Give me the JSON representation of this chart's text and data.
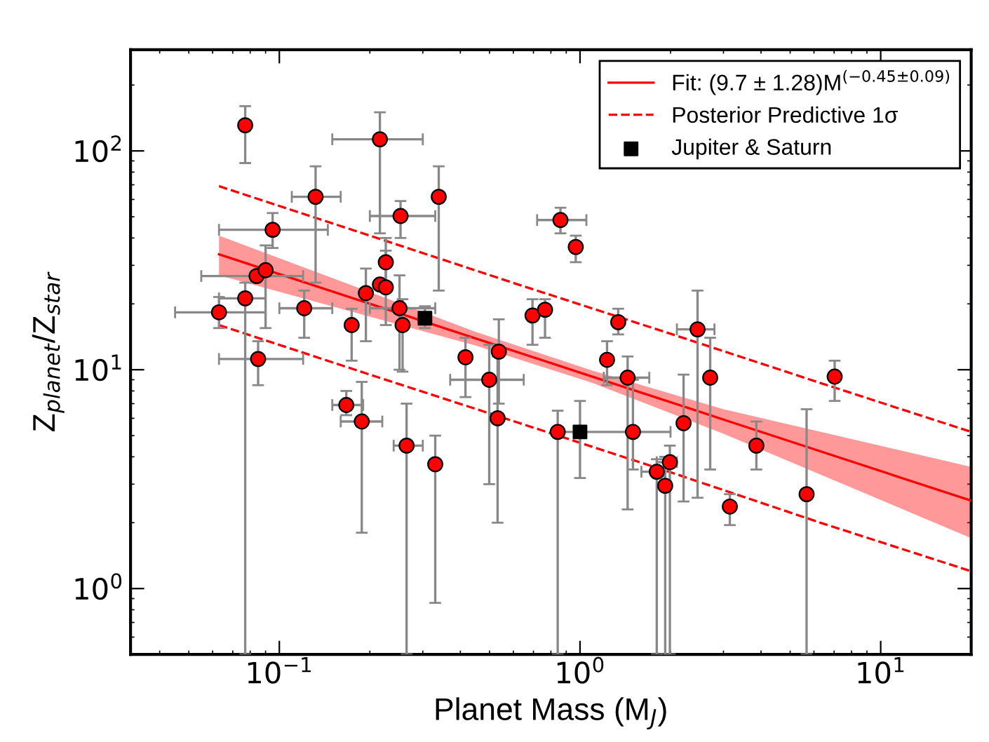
{
  "chart_data": {
    "type": "scatter",
    "xlabel": "Planet Mass (M$_{J}$)",
    "ylabel": "Z$_{planet}$/Z$_{star}$",
    "log": "xy",
    "xlim": [
      0.032,
      20
    ],
    "ylim": [
      0.5,
      290
    ],
    "xticks": [
      {
        "value": 0.1,
        "label": "10$^{−1}$"
      },
      {
        "value": 1,
        "label": "10$^{0}$"
      },
      {
        "value": 10,
        "label": "10$^{1}$"
      }
    ],
    "yticks": [
      {
        "value": 1,
        "label": "10$^{0}$"
      },
      {
        "value": 10,
        "label": "10$^{1}$"
      },
      {
        "value": 100,
        "label": "10$^{2}$"
      }
    ],
    "grid": false,
    "legend": "top right",
    "series": [
      {
        "name": "Fit: (9.7 ± 1.28)M$^{(−0.45±0.09)}$",
        "type": "line",
        "color": "#ff0000",
        "line_style": "solid",
        "marker": "none",
        "x": [
          0.063,
          0.45,
          1.1,
          3,
          20
        ],
        "values": [
          33.7,
          13.9,
          9.29,
          5.92,
          2.52
        ],
        "lower": [
          27,
          12.9,
          8.7,
          5.1,
          1.7
        ],
        "upper": [
          41,
          14.9,
          9.9,
          6.6,
          3.6
        ]
      },
      {
        "name": "Posterior Predictive 1σ",
        "type": "line",
        "color": "#ff0000",
        "line_style": "dashed",
        "marker": "none",
        "x": [
          0.063,
          0.2,
          0.63,
          2,
          6.3,
          20
        ],
        "values": [
          69,
          41,
          24.4,
          14.6,
          8.7,
          5.2
        ]
      },
      {
        "type": "line",
        "color": "#ff0000",
        "line_style": "dashed",
        "marker": "none",
        "x": [
          0.063,
          0.2,
          0.63,
          2,
          6.3,
          20
        ],
        "values": [
          16,
          9.5,
          5.7,
          3.4,
          2.0,
          1.2
        ]
      },
      {
        "color": "#ff0000",
        "marker": "circle",
        "x": [
          0.063,
          0.077,
          0.077,
          0.084,
          0.09,
          0.085,
          0.095,
          0.121,
          0.132,
          0.167,
          0.174,
          0.188,
          0.194,
          0.216,
          0.216,
          0.226,
          0.226,
          0.251,
          0.253,
          0.257,
          0.265,
          0.339,
          0.33,
          0.416,
          0.499,
          0.537,
          0.532,
          0.695,
          0.765,
          0.861,
          0.843,
          0.968,
          1.23,
          1.34,
          1.44,
          1.5,
          1.8,
          1.92,
          1.99,
          2.21,
          2.46,
          2.71,
          3.15,
          3.86,
          5.67,
          7.03
        ],
        "values": [
          18.3,
          21.2,
          131,
          26.8,
          28.5,
          11.2,
          43.6,
          19.1,
          61.7,
          6.9,
          16,
          5.8,
          22.4,
          113,
          24.5,
          31,
          23.8,
          19.1,
          50.4,
          16,
          4.5,
          61.7,
          3.7,
          11.4,
          9.0,
          12.1,
          6.0,
          17.7,
          18.8,
          48.3,
          5.2,
          36.4,
          11.1,
          16.5,
          9.2,
          5.2,
          3.42,
          2.95,
          3.78,
          5.7,
          15.3,
          9.2,
          2.37,
          4.5,
          2.7,
          9.3
        ],
        "errors": [
          [
            15.5,
            21.5
          ],
          [
            0.5,
            25
          ],
          [
            88,
            160
          ],
          null,
          [
            15.5,
            37
          ],
          [
            8.5,
            13.5
          ],
          [
            36,
            52
          ],
          [
            14,
            23
          ],
          [
            25,
            85
          ],
          [
            6.2,
            8
          ],
          [
            11,
            19
          ],
          [
            1.8,
            8.8
          ],
          [
            13.5,
            29
          ],
          [
            42,
            150
          ],
          null,
          [
            25,
            40
          ],
          [
            16,
            35
          ],
          [
            10,
            27
          ],
          [
            40,
            59
          ],
          [
            9.8,
            21
          ],
          [
            0.5,
            7
          ],
          [
            23,
            85
          ],
          [
            0.86,
            5
          ],
          [
            7.5,
            14
          ],
          [
            3,
            13
          ],
          [
            7,
            17
          ],
          [
            2,
            11.5
          ],
          [
            13,
            21
          ],
          [
            14,
            21
          ],
          [
            42,
            55
          ],
          [
            0.5,
            6.5
          ],
          [
            31,
            41
          ],
          [
            8.5,
            13.5
          ],
          [
            14.5,
            19
          ],
          [
            2.3,
            11.5
          ],
          [
            3.5,
            9
          ],
          [
            0.5,
            3.9
          ],
          [
            0.5,
            4
          ],
          [
            0.5,
            4.5
          ],
          [
            2.5,
            9.5
          ],
          [
            2.6,
            23
          ],
          [
            3.5,
            14
          ],
          [
            1.95,
            2.7
          ],
          [
            3.5,
            5.8
          ],
          [
            0.5,
            6.6
          ],
          [
            7.2,
            11
          ]
        ],
        "xerrors": [
          [
            0.045,
            0.09
          ],
          [
            0.063,
            0.09
          ],
          null,
          [
            0.055,
            0.12
          ],
          null,
          [
            0.063,
            0.12
          ],
          [
            0.063,
            0.145
          ],
          [
            0.1,
            0.15
          ],
          [
            0.11,
            0.16
          ],
          [
            0.15,
            0.19
          ],
          null,
          [
            0.16,
            0.22
          ],
          null,
          [
            0.15,
            0.3
          ],
          null,
          null,
          null,
          [
            0.2,
            0.33
          ],
          [
            0.2,
            0.33
          ],
          null,
          [
            0.24,
            0.3
          ],
          null,
          null,
          null,
          [
            0.37,
            0.65
          ],
          null,
          null,
          null,
          null,
          [
            0.72,
            1.05
          ],
          null,
          null,
          null,
          null,
          [
            1.2,
            1.7
          ],
          null,
          [
            1.6,
            1.9
          ],
          null,
          [
            1.8,
            2.1
          ],
          null,
          [
            2.1,
            2.8
          ],
          null,
          null,
          null,
          null,
          null
        ]
      },
      {
        "name": "Jupiter & Saturn",
        "color": "#000000",
        "marker": "square",
        "x": [
          0.305,
          1.0
        ],
        "values": [
          17.2,
          5.2
        ],
        "errors": [
          [
            15.5,
            19.5
          ],
          [
            3.2,
            7.2
          ]
        ],
        "xerrors": [
          null,
          [
            0.85,
            2
          ]
        ]
      }
    ]
  }
}
